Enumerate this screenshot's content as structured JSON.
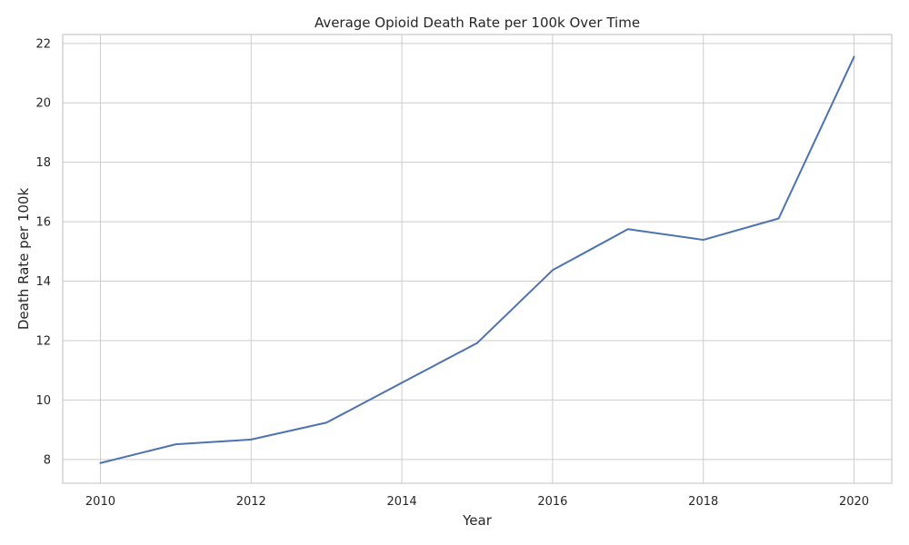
{
  "chart_data": {
    "type": "line",
    "title": "Average Opioid Death Rate per 100k Over Time",
    "xlabel": "Year",
    "ylabel": "Death Rate per 100k",
    "xlim": [
      2009.5,
      2020.5
    ],
    "ylim": [
      7.2,
      22.3
    ],
    "xticks": [
      2010,
      2012,
      2014,
      2016,
      2018,
      2020
    ],
    "yticks": [
      8,
      10,
      12,
      14,
      16,
      18,
      20,
      22
    ],
    "grid": true,
    "series": [
      {
        "color": "#4c72b0",
        "x": [
          2010,
          2011,
          2012,
          2013,
          2014,
          2015,
          2016,
          2017,
          2018,
          2019,
          2020
        ],
        "y": [
          7.88,
          8.51,
          8.67,
          9.24,
          10.58,
          11.92,
          14.37,
          15.75,
          15.39,
          16.11,
          21.55
        ]
      }
    ]
  }
}
